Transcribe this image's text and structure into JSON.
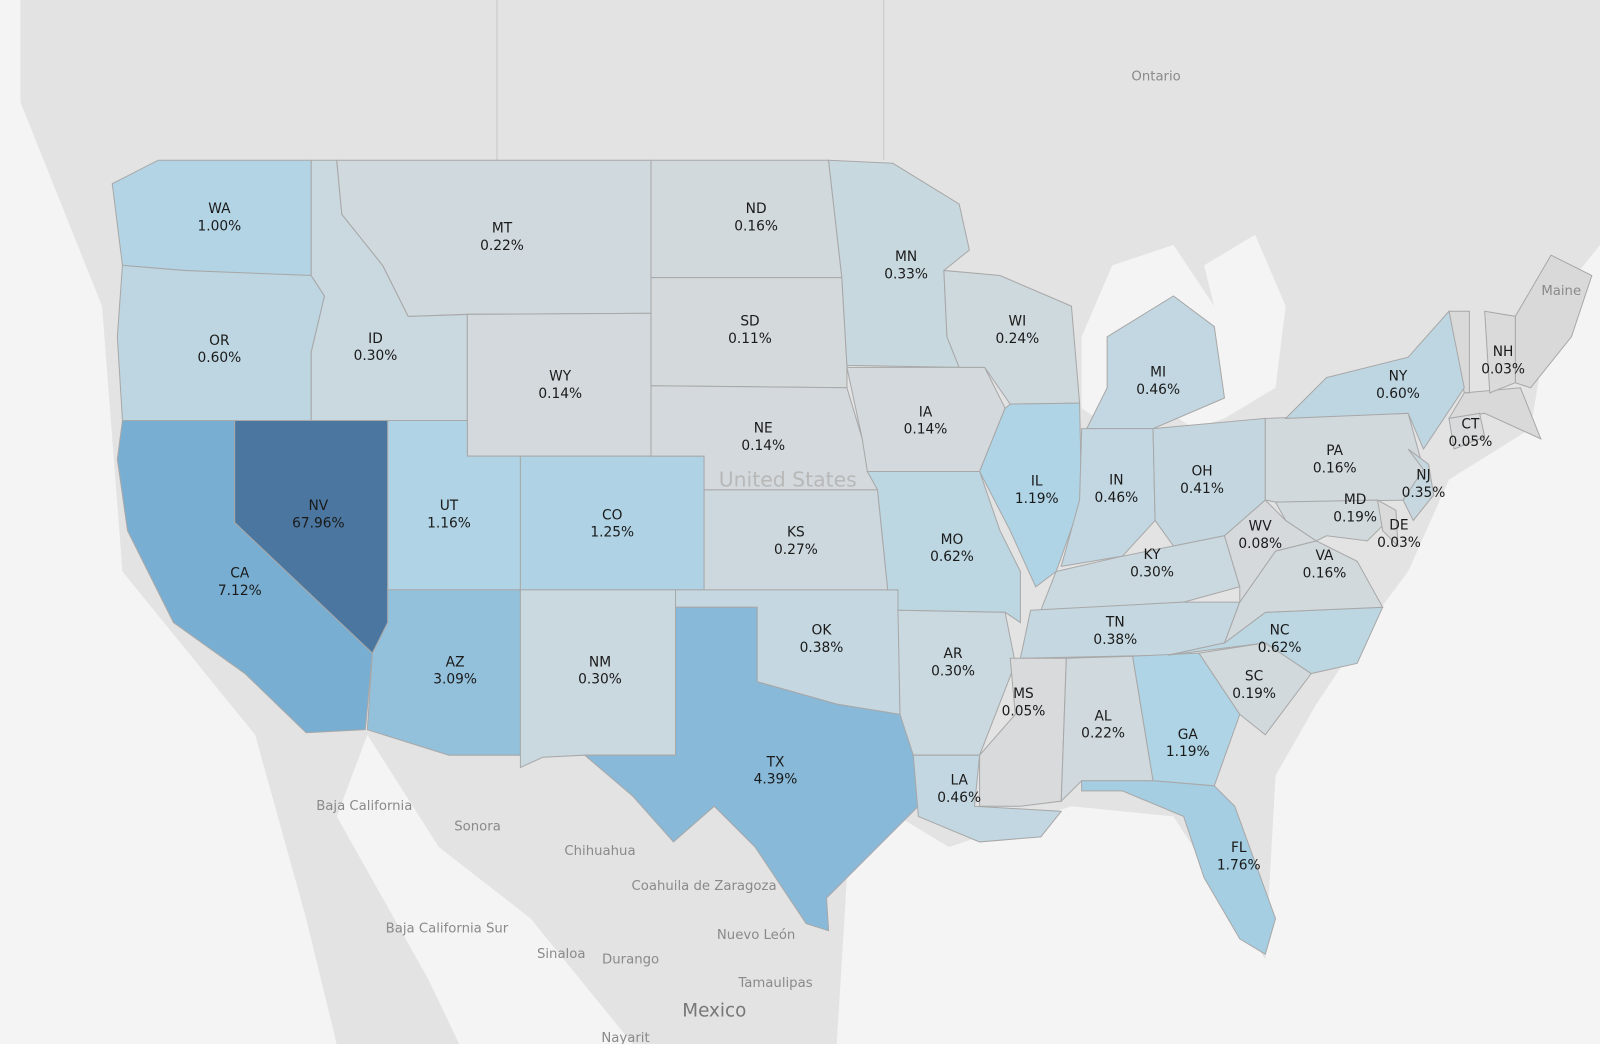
{
  "map": {
    "colors": [
      "#dadada",
      "#d1d9dd",
      "#acd3e6",
      "#6ea6ce",
      "#4a76a0"
    ],
    "states": [
      {
        "code": "WA",
        "value": 1.0,
        "value_label": "1.00%"
      },
      {
        "code": "OR",
        "value": 0.6,
        "value_label": "0.60%"
      },
      {
        "code": "CA",
        "value": 7.12,
        "value_label": "7.12%"
      },
      {
        "code": "NV",
        "value": 67.96,
        "value_label": "67.96%"
      },
      {
        "code": "ID",
        "value": 0.3,
        "value_label": "0.30%"
      },
      {
        "code": "MT",
        "value": 0.22,
        "value_label": "0.22%"
      },
      {
        "code": "WY",
        "value": 0.14,
        "value_label": "0.14%"
      },
      {
        "code": "UT",
        "value": 1.16,
        "value_label": "1.16%"
      },
      {
        "code": "CO",
        "value": 1.25,
        "value_label": "1.25%"
      },
      {
        "code": "AZ",
        "value": 3.09,
        "value_label": "3.09%"
      },
      {
        "code": "NM",
        "value": 0.3,
        "value_label": "0.30%"
      },
      {
        "code": "ND",
        "value": 0.16,
        "value_label": "0.16%"
      },
      {
        "code": "SD",
        "value": 0.11,
        "value_label": "0.11%"
      },
      {
        "code": "NE",
        "value": 0.14,
        "value_label": "0.14%"
      },
      {
        "code": "KS",
        "value": 0.27,
        "value_label": "0.27%"
      },
      {
        "code": "OK",
        "value": 0.38,
        "value_label": "0.38%"
      },
      {
        "code": "TX",
        "value": 4.39,
        "value_label": "4.39%"
      },
      {
        "code": "MN",
        "value": 0.33,
        "value_label": "0.33%"
      },
      {
        "code": "IA",
        "value": 0.14,
        "value_label": "0.14%"
      },
      {
        "code": "MO",
        "value": 0.62,
        "value_label": "0.62%"
      },
      {
        "code": "AR",
        "value": 0.3,
        "value_label": "0.30%"
      },
      {
        "code": "LA",
        "value": 0.46,
        "value_label": "0.46%"
      },
      {
        "code": "WI",
        "value": 0.24,
        "value_label": "0.24%"
      },
      {
        "code": "IL",
        "value": 1.19,
        "value_label": "1.19%"
      },
      {
        "code": "MI",
        "value": 0.46,
        "value_label": "0.46%"
      },
      {
        "code": "IN",
        "value": 0.46,
        "value_label": "0.46%"
      },
      {
        "code": "OH",
        "value": 0.41,
        "value_label": "0.41%"
      },
      {
        "code": "KY",
        "value": 0.3,
        "value_label": "0.30%"
      },
      {
        "code": "TN",
        "value": 0.38,
        "value_label": "0.38%"
      },
      {
        "code": "MS",
        "value": 0.05,
        "value_label": "0.05%"
      },
      {
        "code": "AL",
        "value": 0.22,
        "value_label": "0.22%"
      },
      {
        "code": "GA",
        "value": 1.19,
        "value_label": "1.19%"
      },
      {
        "code": "FL",
        "value": 1.76,
        "value_label": "1.76%"
      },
      {
        "code": "SC",
        "value": 0.19,
        "value_label": "0.19%"
      },
      {
        "code": "NC",
        "value": 0.62,
        "value_label": "0.62%"
      },
      {
        "code": "VA",
        "value": 0.16,
        "value_label": "0.16%"
      },
      {
        "code": "WV",
        "value": 0.08,
        "value_label": "0.08%"
      },
      {
        "code": "PA",
        "value": 0.16,
        "value_label": "0.16%"
      },
      {
        "code": "NY",
        "value": 0.6,
        "value_label": "0.60%"
      },
      {
        "code": "MD",
        "value": 0.19,
        "value_label": "0.19%"
      },
      {
        "code": "DE",
        "value": 0.03,
        "value_label": "0.03%"
      },
      {
        "code": "NJ",
        "value": 0.35,
        "value_label": "0.35%"
      },
      {
        "code": "CT",
        "value": 0.05,
        "value_label": "0.05%"
      },
      {
        "code": "NH",
        "value": 0.03,
        "value_label": "0.03%"
      }
    ],
    "places": [
      "Ontario",
      "Maine",
      "United States",
      "Baja California",
      "Sonora",
      "Chihuahua",
      "Coahuila de Zaragoza",
      "Baja California Sur",
      "Nuevo León",
      "Sinaloa",
      "Durango",
      "Tamaulipas",
      "Mexico",
      "Nayarit"
    ]
  }
}
